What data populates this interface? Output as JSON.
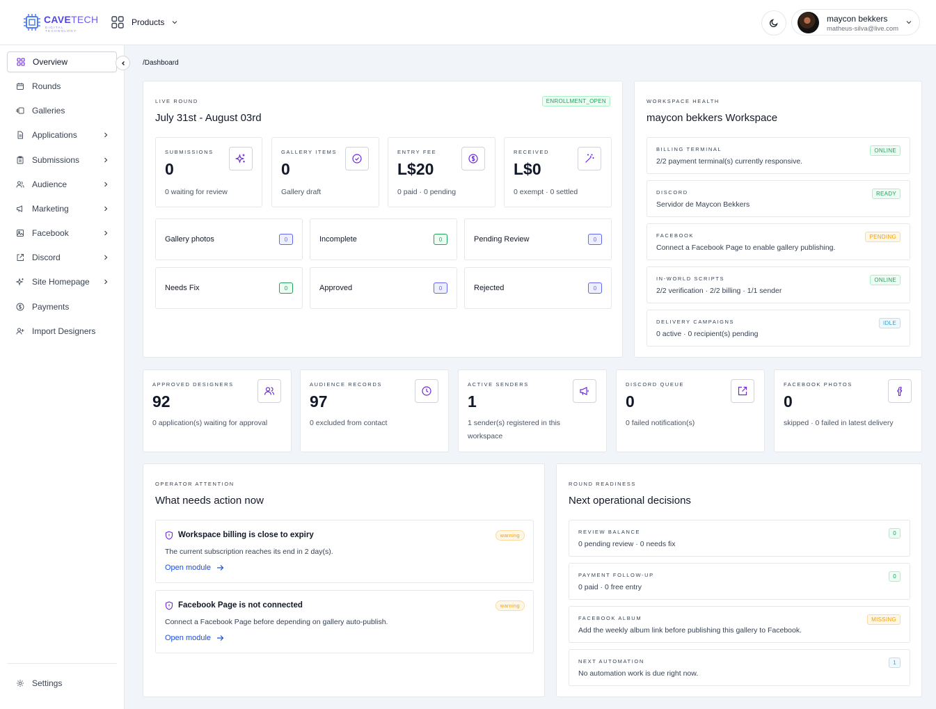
{
  "header": {
    "logo_name": "CAVE",
    "logo_name2": "TECH",
    "logo_tagline": "DIGITAL TECHNOLOGY",
    "products_label": "Products",
    "user_name": "maycon bekkers",
    "user_email": "matheus-silva@live.com"
  },
  "sidebar": {
    "items": [
      {
        "label": "Overview",
        "icon": "grid-icon"
      },
      {
        "label": "Rounds",
        "icon": "calendar-icon"
      },
      {
        "label": "Galleries",
        "icon": "gallery-icon"
      },
      {
        "label": "Applications",
        "icon": "file-icon"
      },
      {
        "label": "Submissions",
        "icon": "clipboard-icon"
      },
      {
        "label": "Audience",
        "icon": "users-icon"
      },
      {
        "label": "Marketing",
        "icon": "megaphone-icon"
      },
      {
        "label": "Facebook",
        "icon": "image-icon"
      },
      {
        "label": "Discord",
        "icon": "share-icon"
      },
      {
        "label": "Site Homepage",
        "icon": "sparkles-icon"
      },
      {
        "label": "Payments",
        "icon": "dollar-icon"
      },
      {
        "label": "Import Designers",
        "icon": "user-plus-icon"
      }
    ],
    "settings_label": "Settings"
  },
  "breadcrumb": "/Dashboard",
  "live_round": {
    "eyebrow": "LIVE ROUND",
    "title": "July 31st - August 03rd",
    "status_badge": "ENROLLMENT_OPEN",
    "stats": [
      {
        "label": "SUBMISSIONS",
        "value": "0",
        "sub": "0 waiting for review",
        "icon": "sparkles-icon"
      },
      {
        "label": "GALLERY ITEMS",
        "value": "0",
        "sub": "Gallery draft",
        "icon": "check-circle-icon"
      },
      {
        "label": "ENTRY FEE",
        "value": "L$20",
        "sub": "0 paid · 0 pending",
        "icon": "dollar-circle-icon"
      },
      {
        "label": "RECEIVED",
        "value": "L$0",
        "sub": "0 exempt · 0 settled",
        "icon": "magic-wand-icon"
      }
    ],
    "pills": [
      {
        "label": "Gallery photos",
        "count": "0",
        "tone": "purple"
      },
      {
        "label": "Incomplete",
        "count": "0",
        "tone": "green"
      },
      {
        "label": "Pending Review",
        "count": "0",
        "tone": "purple"
      },
      {
        "label": "Needs Fix",
        "count": "0",
        "tone": "green"
      },
      {
        "label": "Approved",
        "count": "0",
        "tone": "purple"
      },
      {
        "label": "Rejected",
        "count": "0",
        "tone": "purple"
      }
    ]
  },
  "workspace_health": {
    "eyebrow": "WORKSPACE HEALTH",
    "title": "maycon bekkers Workspace",
    "rows": [
      {
        "label": "BILLING TERMINAL",
        "desc": "2/2 payment terminal(s) currently responsive.",
        "badge": "ONLINE",
        "tone": "green"
      },
      {
        "label": "DISCORD",
        "desc": "Servidor de Maycon Bekkers",
        "badge": "READY",
        "tone": "green"
      },
      {
        "label": "FACEBOOK",
        "desc": "Connect a Facebook Page to enable gallery publishing.",
        "badge": "PENDING",
        "tone": "orange"
      },
      {
        "label": "IN-WORLD SCRIPTS",
        "desc": "2/2 verification · 2/2 billing · 1/1 sender",
        "badge": "ONLINE",
        "tone": "green"
      },
      {
        "label": "DELIVERY CAMPAIGNS",
        "desc": "0 active · 0 recipient(s) pending",
        "badge": "IDLE",
        "tone": "blue"
      }
    ]
  },
  "metrics": [
    {
      "label": "APPROVED DESIGNERS",
      "value": "92",
      "sub": "0 application(s) waiting for approval",
      "icon": "users-icon"
    },
    {
      "label": "AUDIENCE RECORDS",
      "value": "97",
      "sub": "0 excluded from contact",
      "icon": "clock-icon"
    },
    {
      "label": "ACTIVE SENDERS",
      "value": "1",
      "sub": "1 sender(s) registered in this workspace",
      "icon": "megaphone-icon"
    },
    {
      "label": "DISCORD QUEUE",
      "value": "0",
      "sub": "0 failed notification(s)",
      "icon": "share-icon"
    },
    {
      "label": "FACEBOOK PHOTOS",
      "value": "0",
      "sub": "skipped · 0 failed in latest delivery",
      "icon": "facebook-icon"
    }
  ],
  "operator_attention": {
    "eyebrow": "OPERATOR ATTENTION",
    "title": "What needs action now",
    "alerts": [
      {
        "title": "Workspace billing is close to expiry",
        "desc": "The current subscription reaches its end in 2 day(s).",
        "badge": "warning",
        "link": "Open module"
      },
      {
        "title": "Facebook Page is not connected",
        "desc": "Connect a Facebook Page before depending on gallery auto-publish.",
        "badge": "warning",
        "link": "Open module"
      }
    ]
  },
  "round_readiness": {
    "eyebrow": "ROUND READINESS",
    "title": "Next operational decisions",
    "rows": [
      {
        "label": "REVIEW BALANCE",
        "desc": "0 pending review · 0 needs fix",
        "badge": "0",
        "tone": "green"
      },
      {
        "label": "PAYMENT FOLLOW-UP",
        "desc": "0 paid · 0 free entry",
        "badge": "0",
        "tone": "green"
      },
      {
        "label": "FACEBOOK ALBUM",
        "desc": "Add the weekly album link before publishing this gallery to Facebook.",
        "badge": "MISSING",
        "tone": "orange"
      },
      {
        "label": "NEXT AUTOMATION",
        "desc": "No automation work is due right now.",
        "badge": "1",
        "tone": "blue"
      }
    ]
  },
  "colors": {
    "accent": "#6d28d9",
    "brand": "#4f46e5",
    "link": "#1d4ed8",
    "success": "#22a05a",
    "warning": "#f59e0b",
    "info": "#3b9fd8"
  }
}
